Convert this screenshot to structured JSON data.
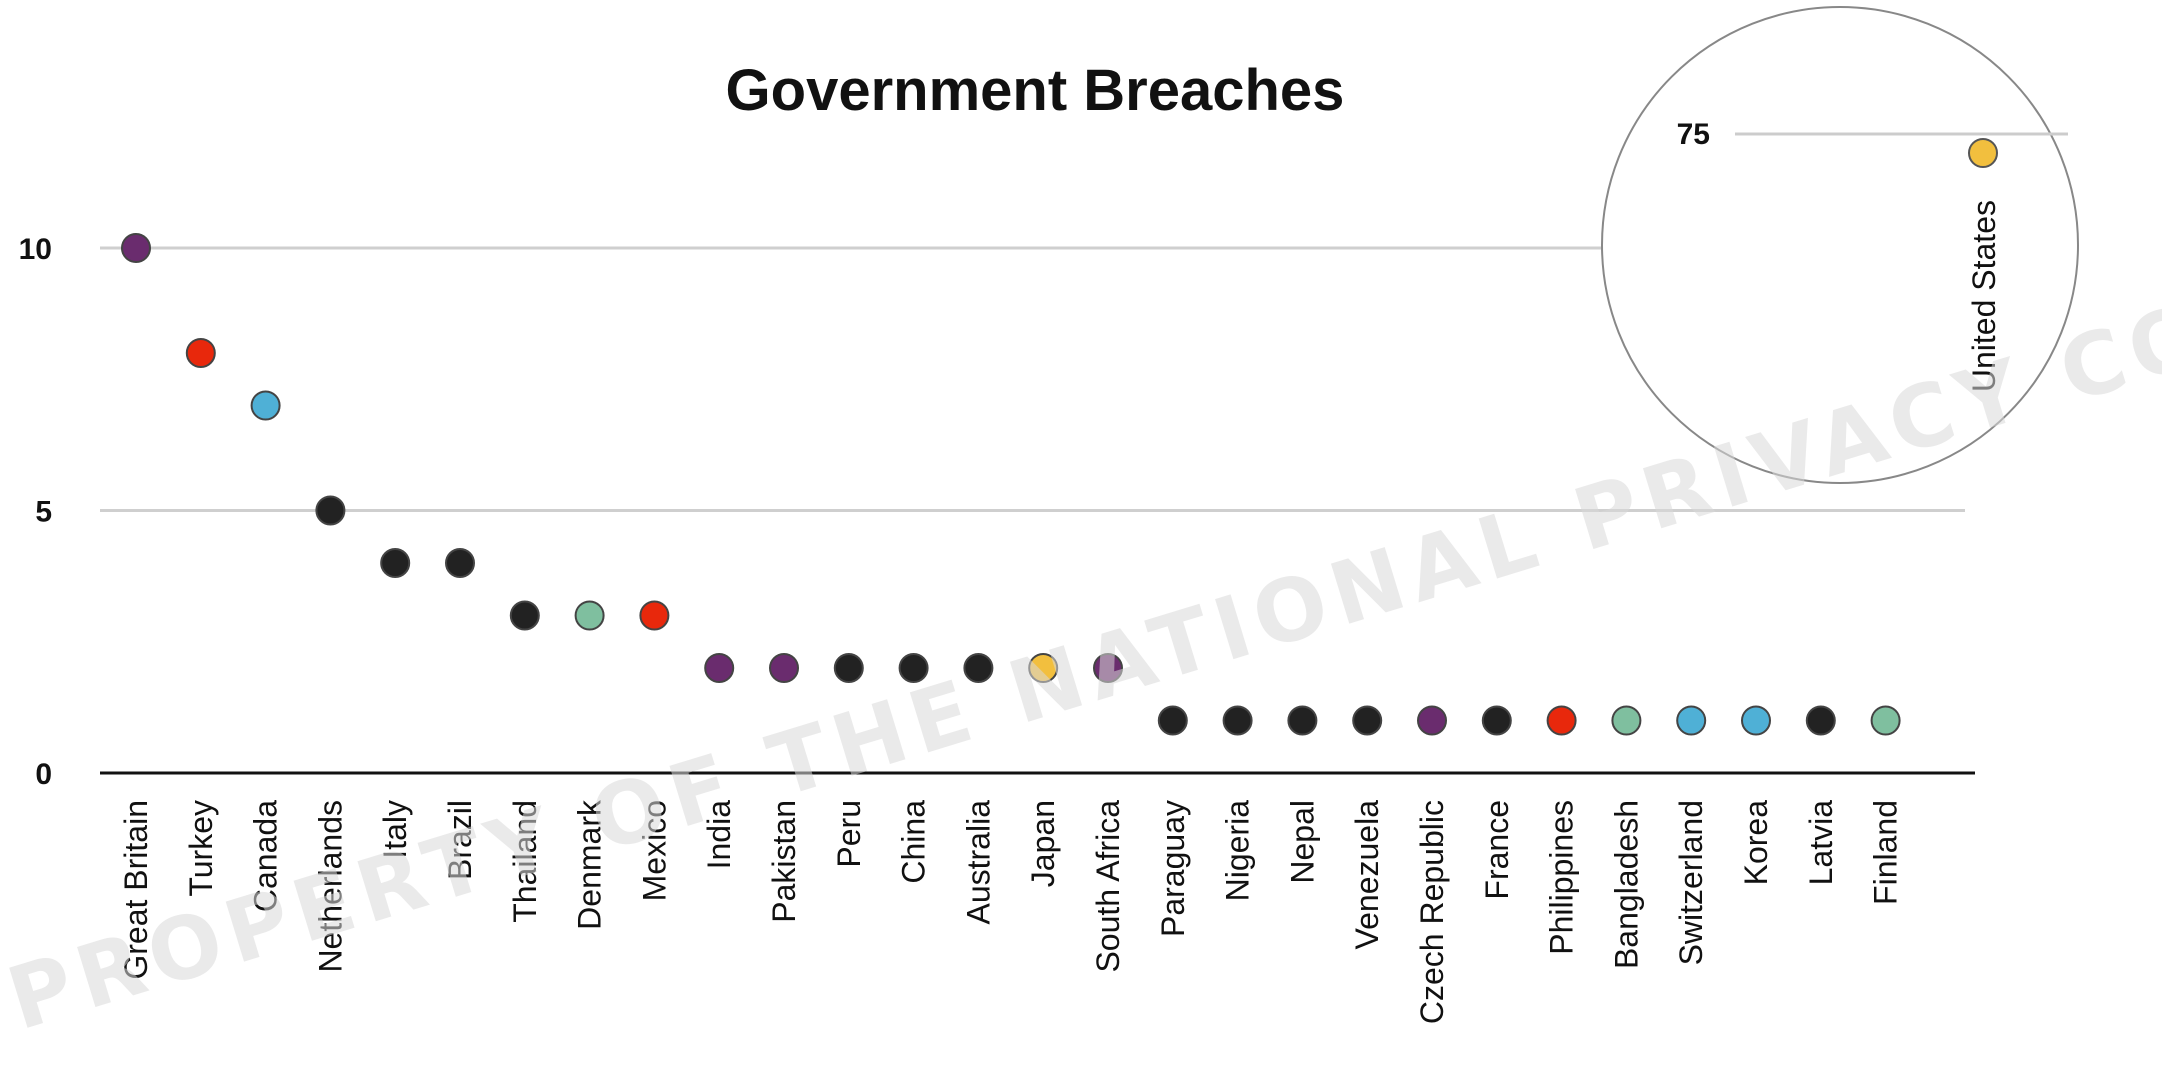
{
  "chart_data": {
    "type": "scatter",
    "title": "Government Breaches",
    "xlabel": "",
    "ylabel": "",
    "ylim": [
      0,
      10
    ],
    "yticks": [
      "0",
      "5",
      "10"
    ],
    "grid": true,
    "points": [
      {
        "label": "Great Britain",
        "value": 10,
        "color": "#6a2c6e"
      },
      {
        "label": "Turkey",
        "value": 8,
        "color": "#e8280c"
      },
      {
        "label": "Canada",
        "value": 7,
        "color": "#4fb0d6"
      },
      {
        "label": "Netherlands",
        "value": 5,
        "color": "#222222"
      },
      {
        "label": "Italy",
        "value": 4,
        "color": "#222222"
      },
      {
        "label": "Brazil",
        "value": 4,
        "color": "#222222"
      },
      {
        "label": "Thailand",
        "value": 3,
        "color": "#222222"
      },
      {
        "label": "Denmark",
        "value": 3,
        "color": "#7fbf9f"
      },
      {
        "label": "Mexico",
        "value": 3,
        "color": "#e8280c"
      },
      {
        "label": "India",
        "value": 2,
        "color": "#6a2c6e"
      },
      {
        "label": "Pakistan",
        "value": 2,
        "color": "#6a2c6e"
      },
      {
        "label": "Peru",
        "value": 2,
        "color": "#222222"
      },
      {
        "label": "China",
        "value": 2,
        "color": "#222222"
      },
      {
        "label": "Australia",
        "value": 2,
        "color": "#222222"
      },
      {
        "label": "Japan",
        "value": 2,
        "color": "#f2bf3e"
      },
      {
        "label": "South Africa",
        "value": 2,
        "color": "#6a2c6e"
      },
      {
        "label": "Paraguay",
        "value": 1,
        "color": "#222222"
      },
      {
        "label": "Nigeria",
        "value": 1,
        "color": "#222222"
      },
      {
        "label": "Nepal",
        "value": 1,
        "color": "#222222"
      },
      {
        "label": "Venezuela",
        "value": 1,
        "color": "#222222"
      },
      {
        "label": "Czech Republic",
        "value": 1,
        "color": "#6a2c6e"
      },
      {
        "label": "France",
        "value": 1,
        "color": "#222222"
      },
      {
        "label": "Philippines",
        "value": 1,
        "color": "#e8280c"
      },
      {
        "label": "Bangladesh",
        "value": 1,
        "color": "#7fbf9f"
      },
      {
        "label": "Switzerland",
        "value": 1,
        "color": "#4fb0d6"
      },
      {
        "label": "Korea",
        "value": 1,
        "color": "#4fb0d6"
      },
      {
        "label": "Latvia",
        "value": 1,
        "color": "#222222"
      },
      {
        "label": "Finland",
        "value": 1,
        "color": "#7fbf9f"
      }
    ],
    "inset": {
      "label": "United States",
      "tick": "75",
      "color": "#f2bf3e",
      "note": "outlier shown in circular inset"
    }
  },
  "watermark": {
    "text": "PROPERTY OF THE NATIONAL PRIVACY COMMISSION"
  }
}
